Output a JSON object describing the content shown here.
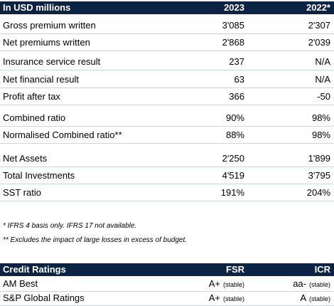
{
  "table": {
    "header": [
      "In USD millions",
      "2023",
      "2022*"
    ],
    "rows": [
      [
        "Gross premium written",
        "3'085",
        "2'307"
      ],
      [
        "Net premiums written",
        "2'868",
        "2'039"
      ],
      [
        "Insurance service result",
        "237",
        "N/A"
      ],
      [
        "Net financial result",
        "63",
        "N/A"
      ],
      [
        "Profit after tax",
        "366",
        "-50"
      ],
      [
        "Combined ratio",
        "90%",
        "98%"
      ],
      [
        "Normalised Combined ratio**",
        "88%",
        "98%"
      ],
      [
        "Net Assets",
        "2'250",
        "1'899"
      ],
      [
        "Total Investments",
        "4'519",
        "3'795"
      ],
      [
        "SST ratio",
        "191%",
        "204%"
      ]
    ]
  },
  "footnotes": [
    "* IFRS 4 basis only. IFRS 17 not available.",
    "** Excludes the impact of large losses in excess of budget."
  ],
  "ratings": {
    "header": [
      "Credit Ratings",
      "FSR",
      "ICR"
    ],
    "rows": [
      {
        "agency": "AM Best",
        "fsr": {
          "rating": "A+",
          "outlook": "(stable)"
        },
        "icr": {
          "rating": "aa-",
          "outlook": "(stable)"
        }
      },
      {
        "agency": "S&P Global Ratings",
        "fsr": {
          "rating": "A+",
          "outlook": "(stable)"
        },
        "icr": {
          "rating": "A",
          "outlook": "(stable)"
        }
      }
    ]
  }
}
